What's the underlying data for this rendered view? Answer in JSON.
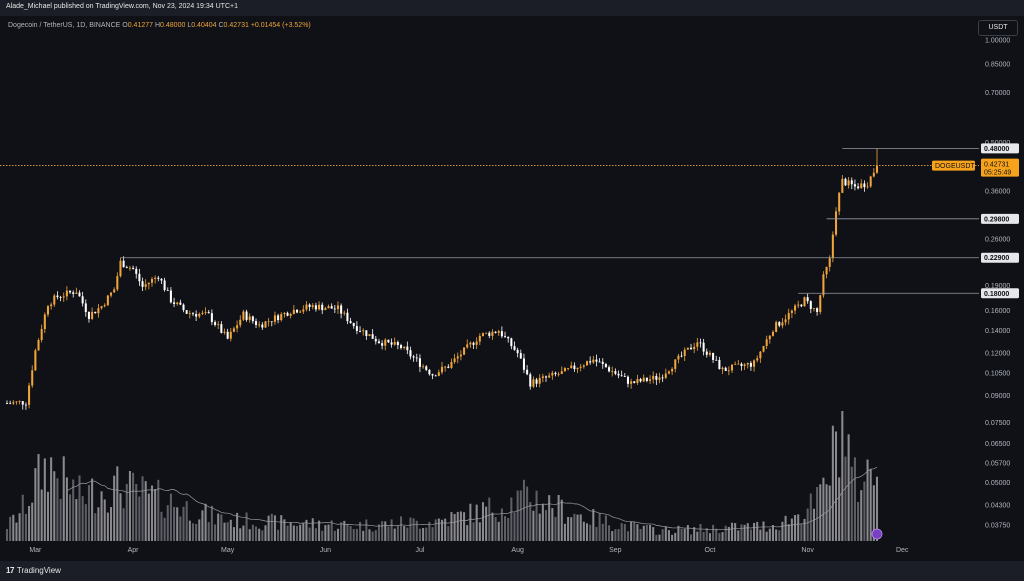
{
  "header": {
    "publisher_line": "Alade_Michael published on TradingView.com, Nov 23, 2024 19:34 UTC+1"
  },
  "legend": {
    "symbol": "Dogecoin / TetherUS, 1D, BINANCE",
    "o_label": "O",
    "o_value": "0.41277",
    "h_label": "H",
    "h_value": "0.48000",
    "l_label": "L",
    "l_value": "0.40404",
    "c_label": "C",
    "c_value": "0.42731",
    "change": "+0.01454 (+3.52%)"
  },
  "currency_button": "USDT",
  "footer": {
    "logo_mark": "17",
    "logo_text": "TradingView"
  },
  "colors": {
    "background": "#0f1117",
    "up_candle": "#f0a53a",
    "down_candle": "#ffffff",
    "volume_bar": "#7c7c80",
    "price_line": "#f0a53a",
    "level_line": "#9598a1",
    "price_tag": "#f7a21b"
  },
  "chart_data": {
    "type": "candlestick",
    "symbol": "DOGEUSDT",
    "interval": "1D",
    "x_start": "2024-02-21",
    "x_end": "2024-11-23",
    "x_axis_ticks": [
      {
        "label": "Mar",
        "date": "2024-03-01"
      },
      {
        "label": "Apr",
        "date": "2024-04-01"
      },
      {
        "label": "May",
        "date": "2024-05-01"
      },
      {
        "label": "Jun",
        "date": "2024-06-01"
      },
      {
        "label": "Jul",
        "date": "2024-07-01"
      },
      {
        "label": "Aug",
        "date": "2024-08-01"
      },
      {
        "label": "Sep",
        "date": "2024-09-01"
      },
      {
        "label": "Oct",
        "date": "2024-10-01"
      },
      {
        "label": "Nov",
        "date": "2024-11-01"
      },
      {
        "label": "Dec",
        "date": "2024-12-01"
      }
    ],
    "y_scale": "log",
    "ylim": [
      0.036,
      1.0
    ],
    "y_axis_ticks": [
      "1.00000",
      "0.85000",
      "0.70000",
      "0.50000",
      "0.36000",
      "0.26000",
      "0.19000",
      "0.16000",
      "0.14000",
      "0.12000",
      "0.10500",
      "0.09000",
      "0.07500",
      "0.06500",
      "0.05700",
      "0.05000",
      "0.04300",
      "0.03750"
    ],
    "price_levels": [
      {
        "value": 0.48,
        "label": "0.48000",
        "start": "2024-11-12"
      },
      {
        "value": 0.298,
        "label": "0.29800",
        "start": "2024-11-07"
      },
      {
        "value": 0.229,
        "label": "0.22900",
        "start": "2024-03-28"
      },
      {
        "value": 0.18,
        "label": "0.18000",
        "start": "2024-10-29"
      }
    ],
    "last_price": {
      "symbol": "DOGEUSDT",
      "value": 0.42731,
      "label": "0.42731",
      "countdown": "05:25:49"
    },
    "series_close_path": [
      {
        "date": "2024-02-21",
        "close": 0.0855
      },
      {
        "date": "2024-02-27",
        "close": 0.0862
      },
      {
        "date": "2024-03-01",
        "close": 0.122
      },
      {
        "date": "2024-03-05",
        "close": 0.168
      },
      {
        "date": "2024-03-08",
        "close": 0.176
      },
      {
        "date": "2024-03-14",
        "close": 0.183
      },
      {
        "date": "2024-03-18",
        "close": 0.155
      },
      {
        "date": "2024-03-22",
        "close": 0.165
      },
      {
        "date": "2024-03-26",
        "close": 0.185
      },
      {
        "date": "2024-03-28",
        "close": 0.222
      },
      {
        "date": "2024-04-01",
        "close": 0.212
      },
      {
        "date": "2024-04-04",
        "close": 0.188
      },
      {
        "date": "2024-04-09",
        "close": 0.203
      },
      {
        "date": "2024-04-13",
        "close": 0.172
      },
      {
        "date": "2024-04-18",
        "close": 0.158
      },
      {
        "date": "2024-04-25",
        "close": 0.155
      },
      {
        "date": "2024-05-01",
        "close": 0.132
      },
      {
        "date": "2024-05-06",
        "close": 0.156
      },
      {
        "date": "2024-05-11",
        "close": 0.145
      },
      {
        "date": "2024-05-21",
        "close": 0.16
      },
      {
        "date": "2024-05-28",
        "close": 0.165
      },
      {
        "date": "2024-06-05",
        "close": 0.162
      },
      {
        "date": "2024-06-10",
        "close": 0.145
      },
      {
        "date": "2024-06-18",
        "close": 0.13
      },
      {
        "date": "2024-06-25",
        "close": 0.125
      },
      {
        "date": "2024-07-05",
        "close": 0.104
      },
      {
        "date": "2024-07-10",
        "close": 0.11
      },
      {
        "date": "2024-07-20",
        "close": 0.135
      },
      {
        "date": "2024-07-26",
        "close": 0.14
      },
      {
        "date": "2024-08-01",
        "close": 0.12
      },
      {
        "date": "2024-08-05",
        "close": 0.098
      },
      {
        "date": "2024-08-15",
        "close": 0.105
      },
      {
        "date": "2024-08-25",
        "close": 0.115
      },
      {
        "date": "2024-09-06",
        "close": 0.098
      },
      {
        "date": "2024-09-15",
        "close": 0.102
      },
      {
        "date": "2024-09-27",
        "close": 0.13
      },
      {
        "date": "2024-10-05",
        "close": 0.107
      },
      {
        "date": "2024-10-15",
        "close": 0.112
      },
      {
        "date": "2024-10-21",
        "close": 0.142
      },
      {
        "date": "2024-10-29",
        "close": 0.165
      },
      {
        "date": "2024-10-31",
        "close": 0.172
      },
      {
        "date": "2024-11-04",
        "close": 0.158
      },
      {
        "date": "2024-11-06",
        "close": 0.2
      },
      {
        "date": "2024-11-08",
        "close": 0.225
      },
      {
        "date": "2024-11-10",
        "close": 0.32
      },
      {
        "date": "2024-11-12",
        "close": 0.385
      },
      {
        "date": "2024-11-16",
        "close": 0.37
      },
      {
        "date": "2024-11-20",
        "close": 0.38
      },
      {
        "date": "2024-11-23",
        "close": 0.427
      }
    ],
    "volume_path": [
      {
        "date": "2024-02-21",
        "v": 0.12
      },
      {
        "date": "2024-03-01",
        "v": 0.45
      },
      {
        "date": "2024-03-05",
        "v": 0.6
      },
      {
        "date": "2024-03-15",
        "v": 0.35
      },
      {
        "date": "2024-03-28",
        "v": 0.42
      },
      {
        "date": "2024-04-13",
        "v": 0.3
      },
      {
        "date": "2024-05-01",
        "v": 0.16
      },
      {
        "date": "2024-06-10",
        "v": 0.12
      },
      {
        "date": "2024-07-05",
        "v": 0.15
      },
      {
        "date": "2024-08-05",
        "v": 0.35
      },
      {
        "date": "2024-09-15",
        "v": 0.08
      },
      {
        "date": "2024-10-21",
        "v": 0.12
      },
      {
        "date": "2024-11-04",
        "v": 0.3
      },
      {
        "date": "2024-11-10",
        "v": 0.75
      },
      {
        "date": "2024-11-12",
        "v": 1.0
      },
      {
        "date": "2024-11-16",
        "v": 0.45
      },
      {
        "date": "2024-11-23",
        "v": 0.55
      }
    ]
  }
}
